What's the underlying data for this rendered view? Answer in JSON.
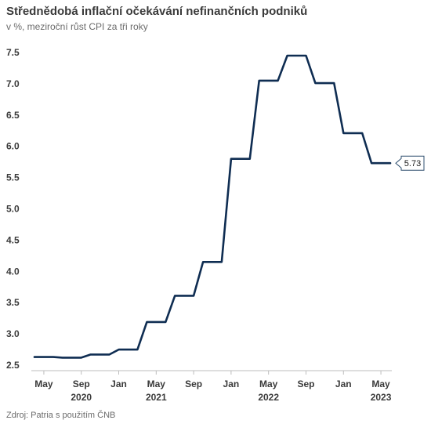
{
  "title": "Střednědobá inflační očekávání nefinančních podniků",
  "subtitle": "v %, meziroční růst CPI za tři roky",
  "source": "Zdroj: Patria s použitím ČNB",
  "chart_data": {
    "type": "line",
    "line_color": "#0f2d52",
    "ylim": [
      2.5,
      7.5
    ],
    "y_ticks": [
      2.5,
      3.0,
      3.5,
      4.0,
      4.5,
      5.0,
      5.5,
      6.0,
      6.5,
      7.0,
      7.5
    ],
    "x_range": [
      "2020-04",
      "2023-06"
    ],
    "x_ticks": [
      {
        "month": "2020-05",
        "label": "May",
        "year": "2020",
        "year_label": false
      },
      {
        "month": "2020-09",
        "label": "Sep",
        "year": "2020",
        "year_label": true
      },
      {
        "month": "2021-01",
        "label": "Jan",
        "year": "2021",
        "year_label": false
      },
      {
        "month": "2021-05",
        "label": "May",
        "year": "2021",
        "year_label": true
      },
      {
        "month": "2021-09",
        "label": "Sep",
        "year": "2021",
        "year_label": false
      },
      {
        "month": "2022-01",
        "label": "Jan",
        "year": "2022",
        "year_label": false
      },
      {
        "month": "2022-05",
        "label": "May",
        "year": "2022",
        "year_label": true
      },
      {
        "month": "2022-09",
        "label": "Sep",
        "year": "2022",
        "year_label": false
      },
      {
        "month": "2023-01",
        "label": "Jan",
        "year": "2023",
        "year_label": false
      },
      {
        "month": "2023-05",
        "label": "May",
        "year": "2023",
        "year_label": true
      }
    ],
    "series": [
      {
        "points": [
          [
            "2020-04",
            2.63
          ],
          [
            "2020-06",
            2.63
          ],
          [
            "2020-07",
            2.62
          ],
          [
            "2020-09",
            2.62
          ],
          [
            "2020-10",
            2.67
          ],
          [
            "2020-12",
            2.67
          ],
          [
            "2021-01",
            2.75
          ],
          [
            "2021-03",
            2.75
          ],
          [
            "2021-04",
            3.19
          ],
          [
            "2021-06",
            3.19
          ],
          [
            "2021-07",
            3.61
          ],
          [
            "2021-09",
            3.61
          ],
          [
            "2021-10",
            4.15
          ],
          [
            "2021-12",
            4.15
          ],
          [
            "2022-01",
            5.8
          ],
          [
            "2022-03",
            5.8
          ],
          [
            "2022-04",
            7.05
          ],
          [
            "2022-06",
            7.05
          ],
          [
            "2022-07",
            7.45
          ],
          [
            "2022-09",
            7.45
          ],
          [
            "2022-10",
            7.01
          ],
          [
            "2022-12",
            7.01
          ],
          [
            "2023-01",
            6.21
          ],
          [
            "2023-03",
            6.21
          ],
          [
            "2023-04",
            5.73
          ],
          [
            "2023-06",
            5.73
          ]
        ]
      }
    ],
    "last_value_label": "5.73"
  }
}
